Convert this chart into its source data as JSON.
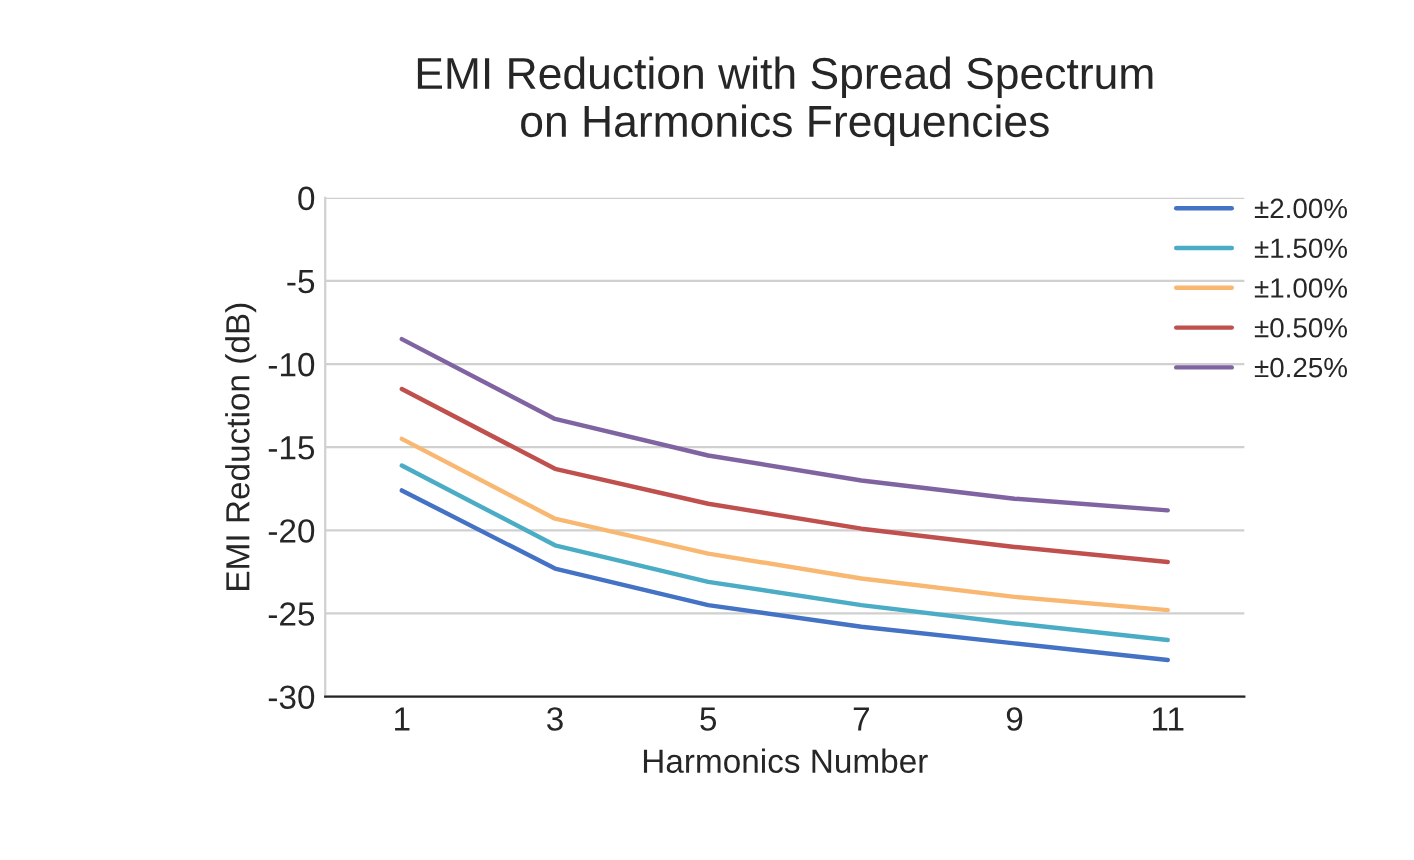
{
  "chart_data": {
    "type": "line",
    "title": "EMI Reduction with Spread Spectrum\non Harmonics Frequencies",
    "xlabel": "Harmonics Number",
    "ylabel": "EMI Reduction (dB)",
    "categories": [
      "1",
      "3",
      "5",
      "7",
      "9",
      "11"
    ],
    "series": [
      {
        "name": "±2.00%",
        "color": "#4472c4",
        "values": [
          -17.6,
          -22.3,
          -24.5,
          -25.8,
          -26.8,
          -27.8
        ]
      },
      {
        "name": "±1.50%",
        "color": "#4bacc6",
        "values": [
          -16.1,
          -20.9,
          -23.1,
          -24.5,
          -25.6,
          -26.6
        ]
      },
      {
        "name": "±1.00%",
        "color": "#f9b872",
        "values": [
          -14.5,
          -19.3,
          -21.4,
          -22.9,
          -24.0,
          -24.8
        ]
      },
      {
        "name": "±0.50%",
        "color": "#c0504d",
        "values": [
          -11.5,
          -16.3,
          -18.4,
          -19.9,
          -21.0,
          -21.9
        ]
      },
      {
        "name": "±0.25%",
        "color": "#8064a2",
        "values": [
          -8.5,
          -13.3,
          -15.5,
          -17.0,
          -18.1,
          -18.8
        ]
      }
    ],
    "ylim": [
      -30,
      0
    ],
    "yticks": [
      -30,
      -25,
      -20,
      -15,
      -10,
      -5,
      0
    ],
    "grid": "y",
    "legend": "top right",
    "marker": "none",
    "line_style": "solid"
  }
}
